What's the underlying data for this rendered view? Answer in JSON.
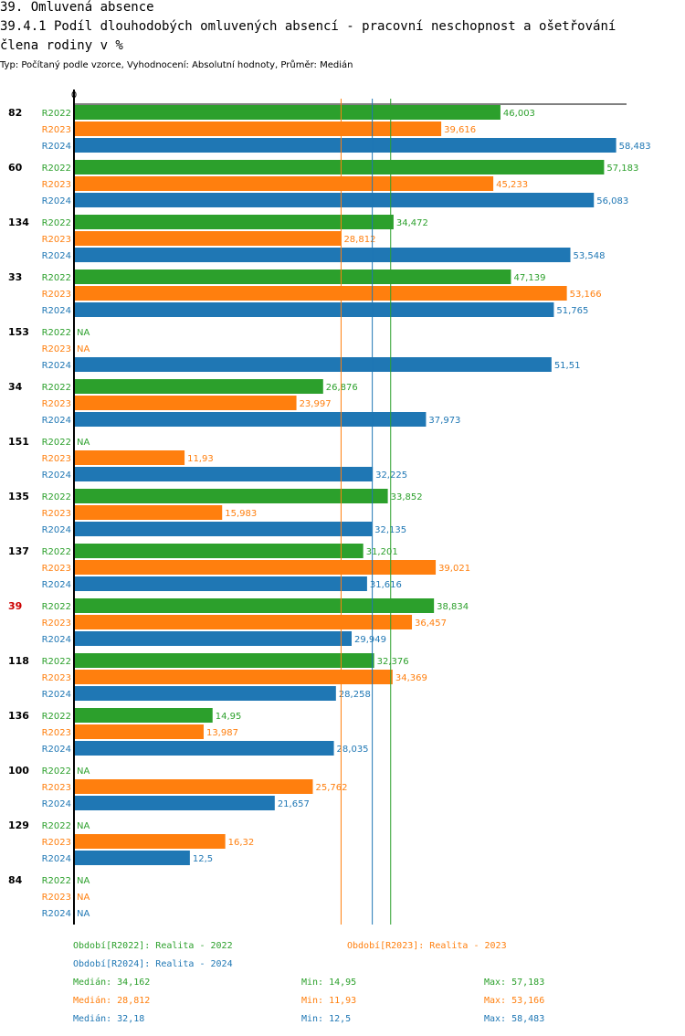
{
  "heading": "39. Omluvená absence",
  "title_line1": "39.4.1 Podíl dlouhodobých omluvených absencí - pracovní neschopnost a ošetřování",
  "title_line2": "člena rodiny v %",
  "subtitle": "Typ: Počítaný podle vzorce, Vyhodnocení: Absolutní hodnoty, Průměr: Medián",
  "colors": {
    "R2022": "#2ca02c",
    "R2023": "#ff7f0e",
    "R2024": "#1f77b4",
    "highlight": "#cc0000"
  },
  "chart_data": {
    "type": "bar",
    "orientation": "horizontal",
    "xlim": [
      0,
      60
    ],
    "axis_zero_label": "0",
    "na_label": "NA",
    "series_names": [
      "R2022",
      "R2023",
      "R2024"
    ],
    "groups": [
      {
        "label": "82",
        "highlight": false,
        "values": [
          46.003,
          39.616,
          58.483
        ],
        "labels": [
          "46,003",
          "39,616",
          "58,483"
        ]
      },
      {
        "label": "60",
        "highlight": false,
        "values": [
          57.183,
          45.233,
          56.083
        ],
        "labels": [
          "57,183",
          "45,233",
          "56,083"
        ]
      },
      {
        "label": "134",
        "highlight": false,
        "values": [
          34.472,
          28.812,
          53.548
        ],
        "labels": [
          "34,472",
          "28,812",
          "53,548"
        ]
      },
      {
        "label": "33",
        "highlight": false,
        "values": [
          47.139,
          53.166,
          51.765
        ],
        "labels": [
          "47,139",
          "53,166",
          "51,765"
        ]
      },
      {
        "label": "153",
        "highlight": false,
        "values": [
          null,
          null,
          51.51
        ],
        "labels": [
          "NA",
          "NA",
          "51,51"
        ]
      },
      {
        "label": "34",
        "highlight": false,
        "values": [
          26.876,
          23.997,
          37.973
        ],
        "labels": [
          "26,876",
          "23,997",
          "37,973"
        ]
      },
      {
        "label": "151",
        "highlight": false,
        "values": [
          null,
          11.93,
          32.225
        ],
        "labels": [
          "NA",
          "11,93",
          "32,225"
        ]
      },
      {
        "label": "135",
        "highlight": false,
        "values": [
          33.852,
          15.983,
          32.135
        ],
        "labels": [
          "33,852",
          "15,983",
          "32,135"
        ]
      },
      {
        "label": "137",
        "highlight": false,
        "values": [
          31.201,
          39.021,
          31.616
        ],
        "labels": [
          "31,201",
          "39,021",
          "31,616"
        ]
      },
      {
        "label": "39",
        "highlight": true,
        "values": [
          38.834,
          36.457,
          29.949
        ],
        "labels": [
          "38,834",
          "36,457",
          "29,949"
        ]
      },
      {
        "label": "118",
        "highlight": false,
        "values": [
          32.376,
          34.369,
          28.258
        ],
        "labels": [
          "32,376",
          "34,369",
          "28,258"
        ]
      },
      {
        "label": "136",
        "highlight": false,
        "values": [
          14.95,
          13.987,
          28.035
        ],
        "labels": [
          "14,95",
          "13,987",
          "28,035"
        ]
      },
      {
        "label": "100",
        "highlight": false,
        "values": [
          null,
          25.762,
          21.657
        ],
        "labels": [
          "NA",
          "25,762",
          "21,657"
        ]
      },
      {
        "label": "129",
        "highlight": false,
        "values": [
          null,
          16.32,
          12.5
        ],
        "labels": [
          "NA",
          "16,32",
          "12,5"
        ]
      },
      {
        "label": "84",
        "highlight": false,
        "values": [
          null,
          null,
          null
        ],
        "labels": [
          "NA",
          "NA",
          "NA"
        ]
      }
    ],
    "median_lines": {
      "R2022": 34.162,
      "R2023": 28.812,
      "R2024": 32.18
    }
  },
  "legend": {
    "r2022": "Období[R2022]: Realita - 2022",
    "r2023": "Období[R2023]: Realita - 2023",
    "r2024": "Období[R2024]: Realita - 2024"
  },
  "stats": {
    "r2022": {
      "median": "Medián: 34,162",
      "min": "Min: 14,95",
      "max": "Max: 57,183"
    },
    "r2023": {
      "median": "Medián: 28,812",
      "min": "Min: 11,93",
      "max": "Max: 53,166"
    },
    "r2024": {
      "median": "Medián: 32,18",
      "min": "Min: 12,5",
      "max": "Max: 58,483"
    }
  }
}
